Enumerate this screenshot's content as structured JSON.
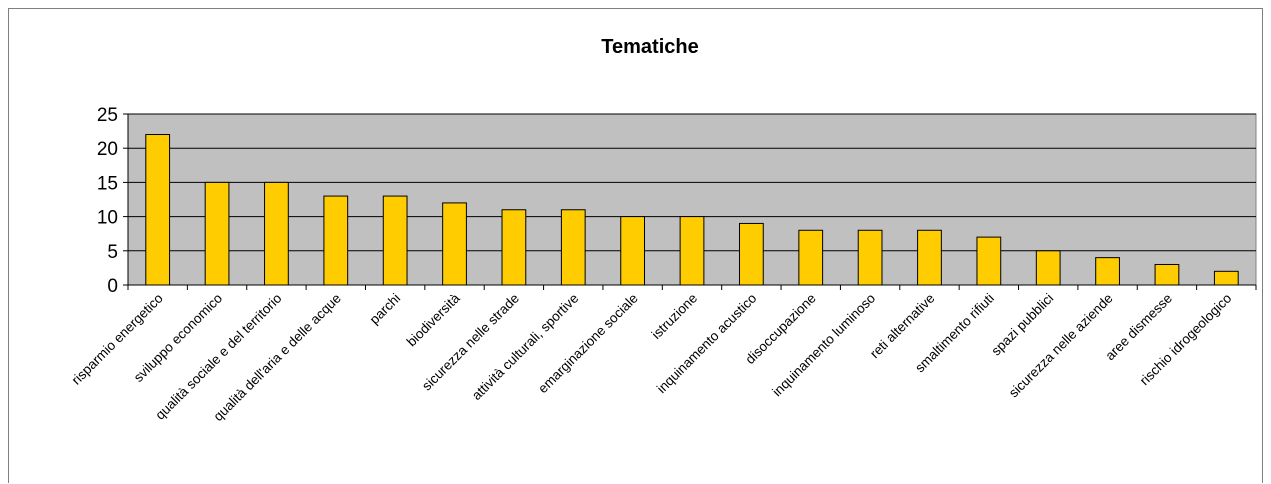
{
  "chart_data": {
    "type": "bar",
    "title": "Tematiche",
    "xlabel": "",
    "ylabel": "",
    "ylim": [
      0,
      25
    ],
    "yticks": [
      0,
      5,
      10,
      15,
      20,
      25
    ],
    "grid": true,
    "legend": "none",
    "colors": {
      "bar_fill": "#FFCC00",
      "bar_stroke": "#000000",
      "plot_background": "#C0C0C0",
      "gridline": "#000000"
    },
    "categories": [
      "risparmio energetico",
      "sviluppo economico",
      "qualità sociale e del territorio",
      "qualità dell'aria e delle acque",
      "parchi",
      "biodiversità",
      "sicurezza nelle strade",
      "attività culturali, sportive",
      "emarginazione sociale",
      "istruzione",
      "inquinamento acustico",
      "disoccupazione",
      "inquinamento luminoso",
      "reti alternative",
      "smaltimento rifiuti",
      "spazi pubblici",
      "sicurezza nelle aziende",
      "aree dismesse",
      "rischio idrogeologico"
    ],
    "values": [
      22,
      15,
      15,
      13,
      13,
      12,
      11,
      11,
      10,
      10,
      9,
      8,
      8,
      8,
      7,
      5,
      4,
      3,
      2
    ]
  }
}
